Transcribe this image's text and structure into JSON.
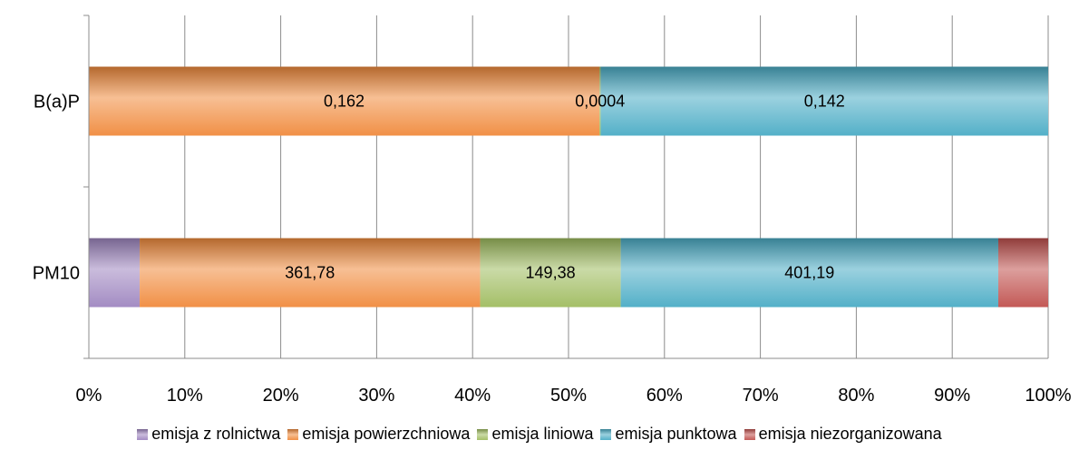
{
  "chart_data": {
    "type": "bar",
    "orientation": "horizontal",
    "stacked": "percent",
    "categories": [
      "B(a)P",
      "PM10"
    ],
    "series": [
      {
        "name": "emisja z rolnictwa",
        "color": "#9e86c0",
        "values": [
          0,
          54
        ],
        "labels": [
          "",
          ""
        ]
      },
      {
        "name": "emisja powierzchniowa",
        "color": "#f08a3c",
        "values": [
          0.162,
          361.78
        ],
        "labels": [
          "0,162",
          "361,78"
        ]
      },
      {
        "name": "emisja liniowa",
        "color": "#9fbc5f",
        "values": [
          0.0004,
          149.38
        ],
        "labels": [
          "0,0004",
          "149,38"
        ]
      },
      {
        "name": "emisja punktowa",
        "color": "#4aacc5",
        "values": [
          0.142,
          401.19
        ],
        "labels": [
          "0,142",
          "401,19"
        ]
      },
      {
        "name": "emisja niezorganizowana",
        "color": "#c0504d",
        "values": [
          0,
          53
        ],
        "labels": [
          "",
          ""
        ]
      }
    ],
    "xaxis": {
      "ticks": [
        "0%",
        "10%",
        "20%",
        "30%",
        "40%",
        "50%",
        "60%",
        "70%",
        "80%",
        "90%",
        "100%"
      ],
      "range": [
        0,
        100
      ]
    },
    "grid": true,
    "legend": "bottom"
  }
}
